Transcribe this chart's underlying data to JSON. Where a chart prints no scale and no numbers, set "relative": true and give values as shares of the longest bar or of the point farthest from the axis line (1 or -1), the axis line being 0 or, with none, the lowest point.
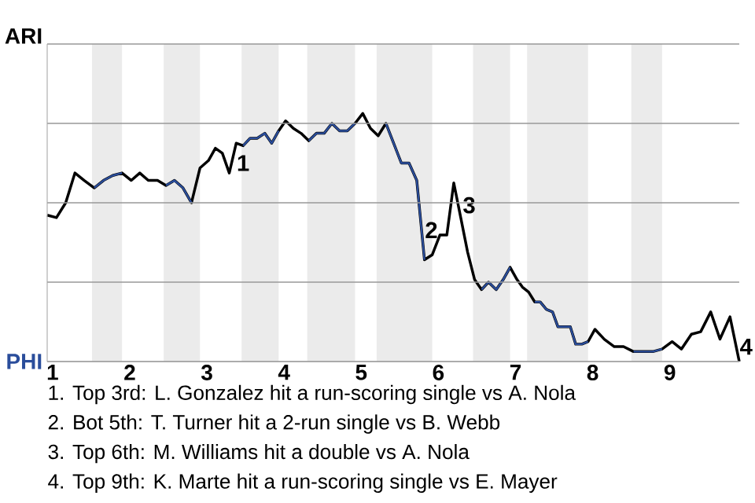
{
  "chart_data": {
    "type": "line",
    "relative": true,
    "xlim": [
      0.93,
      9.9
    ],
    "xticks": [
      {
        "value": 1,
        "label": "1"
      },
      {
        "value": 2,
        "label": "2"
      },
      {
        "value": 3,
        "label": "3"
      },
      {
        "value": 4,
        "label": "4"
      },
      {
        "value": 5,
        "label": "5"
      },
      {
        "value": 6,
        "label": "6"
      },
      {
        "value": 7,
        "label": "7"
      },
      {
        "value": 8,
        "label": "8"
      },
      {
        "value": 9,
        "label": "9"
      }
    ],
    "x": [
      0.93,
      1.05,
      1.17,
      1.29,
      1.41,
      1.54,
      1.66,
      1.78,
      1.9,
      2.02,
      2.13,
      2.24,
      2.36,
      2.47,
      2.58,
      2.69,
      2.8,
      2.91,
      3.02,
      3.11,
      3.2,
      3.29,
      3.38,
      3.47,
      3.56,
      3.65,
      3.75,
      3.84,
      3.93,
      4.02,
      4.12,
      4.22,
      4.32,
      4.42,
      4.52,
      4.62,
      4.72,
      4.82,
      4.92,
      5.02,
      5.12,
      5.22,
      5.32,
      5.42,
      5.52,
      5.62,
      5.72,
      5.82,
      5.92,
      6.02,
      6.11,
      6.2,
      6.29,
      6.38,
      6.47,
      6.56,
      6.65,
      6.75,
      6.84,
      6.93,
      7.02,
      7.09,
      7.17,
      7.25,
      7.32,
      7.4,
      7.48,
      7.55,
      7.63,
      7.71,
      7.78,
      7.86,
      7.94,
      8.03,
      8.15,
      8.28,
      8.4,
      8.53,
      8.65,
      8.78,
      8.9,
      9.03,
      9.15,
      9.28,
      9.4,
      9.53,
      9.65,
      9.78,
      9.9
    ],
    "grid": "y",
    "series": [
      {
        "name": "ARI",
        "color": "#000000",
        "values": [
          0.59,
          0.58,
          0.64,
          0.76,
          0.73,
          0.7,
          0.73,
          0.75,
          0.76,
          0.73,
          0.76,
          0.73,
          0.73,
          0.71,
          0.73,
          0.7,
          0.64,
          0.78,
          0.81,
          0.86,
          0.84,
          0.76,
          0.88,
          0.87,
          0.9,
          0.9,
          0.92,
          0.88,
          0.93,
          0.97,
          0.94,
          0.92,
          0.89,
          0.92,
          0.92,
          0.96,
          0.93,
          0.93,
          0.96,
          1,
          0.94,
          0.91,
          0.96,
          0.88,
          0.8,
          0.8,
          0.73,
          0.41,
          0.43,
          0.51,
          0.51,
          0.72,
          0.58,
          0.44,
          0.33,
          0.29,
          0.32,
          0.29,
          0.33,
          0.38,
          0.33,
          0.3,
          0.28,
          0.24,
          0.24,
          0.21,
          0.2,
          0.14,
          0.14,
          0.14,
          0.07,
          0.07,
          0.08,
          0.13,
          0.09,
          0.06,
          0.06,
          0.04,
          0.04,
          0.04,
          0.05,
          0.08,
          0.05,
          0.11,
          0.12,
          0.2,
          0.09,
          0.18,
          0
        ]
      },
      {
        "name": "PHI",
        "color": "#2a4d9b",
        "values": [
          null,
          null,
          null,
          null,
          null,
          0.7,
          0.73,
          0.75,
          0.76,
          null,
          null,
          null,
          null,
          0.71,
          0.73,
          0.7,
          0.64,
          null,
          null,
          null,
          null,
          null,
          null,
          0.87,
          0.9,
          0.9,
          0.92,
          0.88,
          0.93,
          null,
          null,
          null,
          0.89,
          0.92,
          0.92,
          0.96,
          0.93,
          0.93,
          0.96,
          null,
          null,
          null,
          0.96,
          0.88,
          0.8,
          0.8,
          0.73,
          0.41,
          null,
          null,
          null,
          null,
          null,
          null,
          null,
          0.29,
          0.32,
          0.29,
          0.33,
          0.38,
          null,
          null,
          null,
          0.24,
          0.24,
          0.21,
          0.2,
          0.14,
          0.14,
          0.14,
          0.07,
          0.07,
          0.08,
          null,
          null,
          null,
          null,
          0.04,
          0.04,
          0.04,
          0.05,
          null,
          null,
          null,
          null,
          null,
          null,
          null,
          null
        ]
      }
    ],
    "bands": [
      {
        "axis": "x",
        "from": 1.51,
        "to": 1.9,
        "color": "#ebebeb"
      },
      {
        "axis": "x",
        "from": 2.44,
        "to": 2.91,
        "color": "#ebebeb"
      },
      {
        "axis": "x",
        "from": 3.45,
        "to": 3.93,
        "color": "#ebebeb"
      },
      {
        "axis": "x",
        "from": 4.3,
        "to": 4.92,
        "color": "#ebebeb"
      },
      {
        "axis": "x",
        "from": 5.2,
        "to": 5.92,
        "color": "#ebebeb"
      },
      {
        "axis": "x",
        "from": 6.45,
        "to": 6.93,
        "color": "#ebebeb"
      },
      {
        "axis": "x",
        "from": 7.15,
        "to": 7.94,
        "color": "#ebebeb"
      },
      {
        "axis": "x",
        "from": 8.5,
        "to": 8.9,
        "color": "#ebebeb"
      }
    ],
    "annotations": [
      {
        "text": "1",
        "x": 3.34,
        "y": 0.8
      },
      {
        "text": "2",
        "x": 5.78,
        "y": 0.53
      },
      {
        "text": "3",
        "x": 6.27,
        "y": 0.63
      },
      {
        "text": "4",
        "x": 9.86,
        "y": 0.06
      },
      "1. Top 3rd: L. Gonzalez hit a run-scoring single vs A. Nola",
      "2. Bot 5th: T. Turner hit a 2-run single vs B. Webb",
      "3. Top 6th: M. Williams hit a double vs A. Nola",
      "4. Top 9th: K. Marte hit a run-scoring single vs E. Mayer"
    ]
  }
}
